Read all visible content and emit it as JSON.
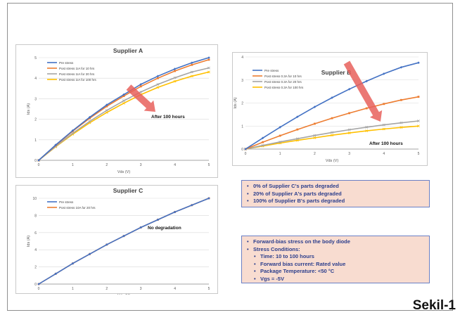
{
  "chart_data": [
    {
      "type": "line",
      "title": "Supplier A",
      "xlabel": "Vds (V)",
      "ylabel": "Ids (A)",
      "xlim": [
        0,
        5
      ],
      "ylim": [
        0,
        5
      ],
      "xticks": [
        "0",
        "1",
        "2",
        "3",
        "4",
        "5"
      ],
      "yticks": [
        "0",
        "1",
        "2",
        "3",
        "4",
        "5"
      ],
      "grid": true,
      "legend_position": "top-left",
      "x": [
        0,
        0.5,
        1,
        1.5,
        2,
        2.5,
        3,
        3.5,
        4,
        4.5,
        5
      ],
      "series": [
        {
          "name": "Pre stress",
          "color": "#4472c4",
          "marker": "diamond",
          "values": [
            0,
            0.75,
            1.45,
            2.1,
            2.7,
            3.2,
            3.7,
            4.1,
            4.45,
            4.75,
            5.0
          ]
        },
        {
          "name": "Post stress 1IA for 10 hrs",
          "color": "#ed7d31",
          "marker": "square",
          "values": [
            0,
            0.73,
            1.42,
            2.05,
            2.63,
            3.13,
            3.6,
            4.0,
            4.35,
            4.65,
            4.9
          ]
        },
        {
          "name": "Post stress 1IA for 20 hrs",
          "color": "#a5a5a5",
          "marker": "x",
          "values": [
            0,
            0.68,
            1.32,
            1.9,
            2.43,
            2.9,
            3.33,
            3.7,
            4.02,
            4.3,
            4.5
          ]
        },
        {
          "name": "Post stress 1IA for 100 hrs",
          "color": "#ffc000",
          "marker": "x",
          "values": [
            0,
            0.66,
            1.27,
            1.83,
            2.33,
            2.78,
            3.2,
            3.55,
            3.85,
            4.1,
            4.3
          ]
        }
      ],
      "annotations": [
        "After 100 hours"
      ]
    },
    {
      "type": "line",
      "title": "Supplier B",
      "xlabel": "Vds (V)",
      "ylabel": "Ids (A)",
      "xlim": [
        0,
        5
      ],
      "ylim": [
        0,
        4
      ],
      "xticks": [
        "0",
        "1",
        "2",
        "3",
        "4",
        "5"
      ],
      "yticks": [
        "0",
        "1",
        "2",
        "3",
        "4"
      ],
      "grid": true,
      "legend_position": "top-left",
      "x": [
        0,
        0.5,
        1,
        1.5,
        2,
        2.5,
        3,
        3.5,
        4,
        4.5,
        5
      ],
      "series": [
        {
          "name": "Pre stress",
          "color": "#4472c4",
          "marker": "diamond",
          "values": [
            0,
            0.48,
            0.95,
            1.4,
            1.83,
            2.23,
            2.6,
            2.95,
            3.27,
            3.55,
            3.75
          ]
        },
        {
          "name": "Post stress 0.3A for 10 hrs",
          "color": "#ed7d31",
          "marker": "square",
          "values": [
            0,
            0.3,
            0.58,
            0.85,
            1.1,
            1.34,
            1.56,
            1.77,
            1.96,
            2.13,
            2.27
          ]
        },
        {
          "name": "Post stress 0.3A for 20 hrs",
          "color": "#a5a5a5",
          "marker": "x",
          "values": [
            0,
            0.16,
            0.31,
            0.45,
            0.59,
            0.72,
            0.84,
            0.95,
            1.05,
            1.14,
            1.22
          ]
        },
        {
          "name": "Post stress 0.3A for 100 hrs",
          "color": "#ffc000",
          "marker": "x",
          "values": [
            0,
            0.13,
            0.26,
            0.38,
            0.49,
            0.6,
            0.7,
            0.79,
            0.87,
            0.94,
            1.0
          ]
        }
      ],
      "annotations": [
        "After 100 hours"
      ]
    },
    {
      "type": "line",
      "title": "Supplier C",
      "xlabel": "Vds (V)",
      "ylabel": "Ids (A)",
      "xlim": [
        0,
        5
      ],
      "ylim": [
        0,
        10
      ],
      "xticks": [
        "0",
        "1",
        "2",
        "3",
        "4",
        "5"
      ],
      "yticks": [
        "0",
        "2",
        "4",
        "6",
        "8",
        "10"
      ],
      "grid": true,
      "legend_position": "top-left",
      "x": [
        0,
        0.5,
        1,
        1.5,
        2,
        2.5,
        3,
        3.5,
        4,
        4.5,
        5
      ],
      "series": [
        {
          "name": "Pre stress",
          "color": "#4472c4",
          "marker": "diamond",
          "values": [
            0,
            1.2,
            2.4,
            3.5,
            4.6,
            5.6,
            6.6,
            7.5,
            8.4,
            9.2,
            10.0
          ]
        },
        {
          "name": "Post stress 10A for 20 hrs",
          "color": "#ed7d31",
          "marker": "square",
          "values": [
            0,
            1.2,
            2.4,
            3.5,
            4.6,
            5.6,
            6.6,
            7.5,
            8.4,
            9.2,
            10.0
          ]
        }
      ],
      "annotations": [
        "No degradation"
      ]
    }
  ],
  "summary_box": {
    "items": [
      "0% of Supplier C's parts degraded",
      "20% of Supplier A's parts degraded",
      "100% of Supplier B's parts degraded"
    ]
  },
  "conditions_box": {
    "title": "Forward-bias stress on the body diode",
    "conditions_label": "Stress Conditions:",
    "items": [
      "Time: 10 to 100 hours",
      "Forward bias current: Rated value",
      "Package Temperature: <50 °C",
      "Vgs = -5V"
    ]
  },
  "figure_label": "Sekil-1",
  "colors": {
    "box_fill": "#f8dcd0",
    "box_border": "#6a7fc4",
    "box_text": "#2c3e8c",
    "arrow": "#e8605c"
  }
}
